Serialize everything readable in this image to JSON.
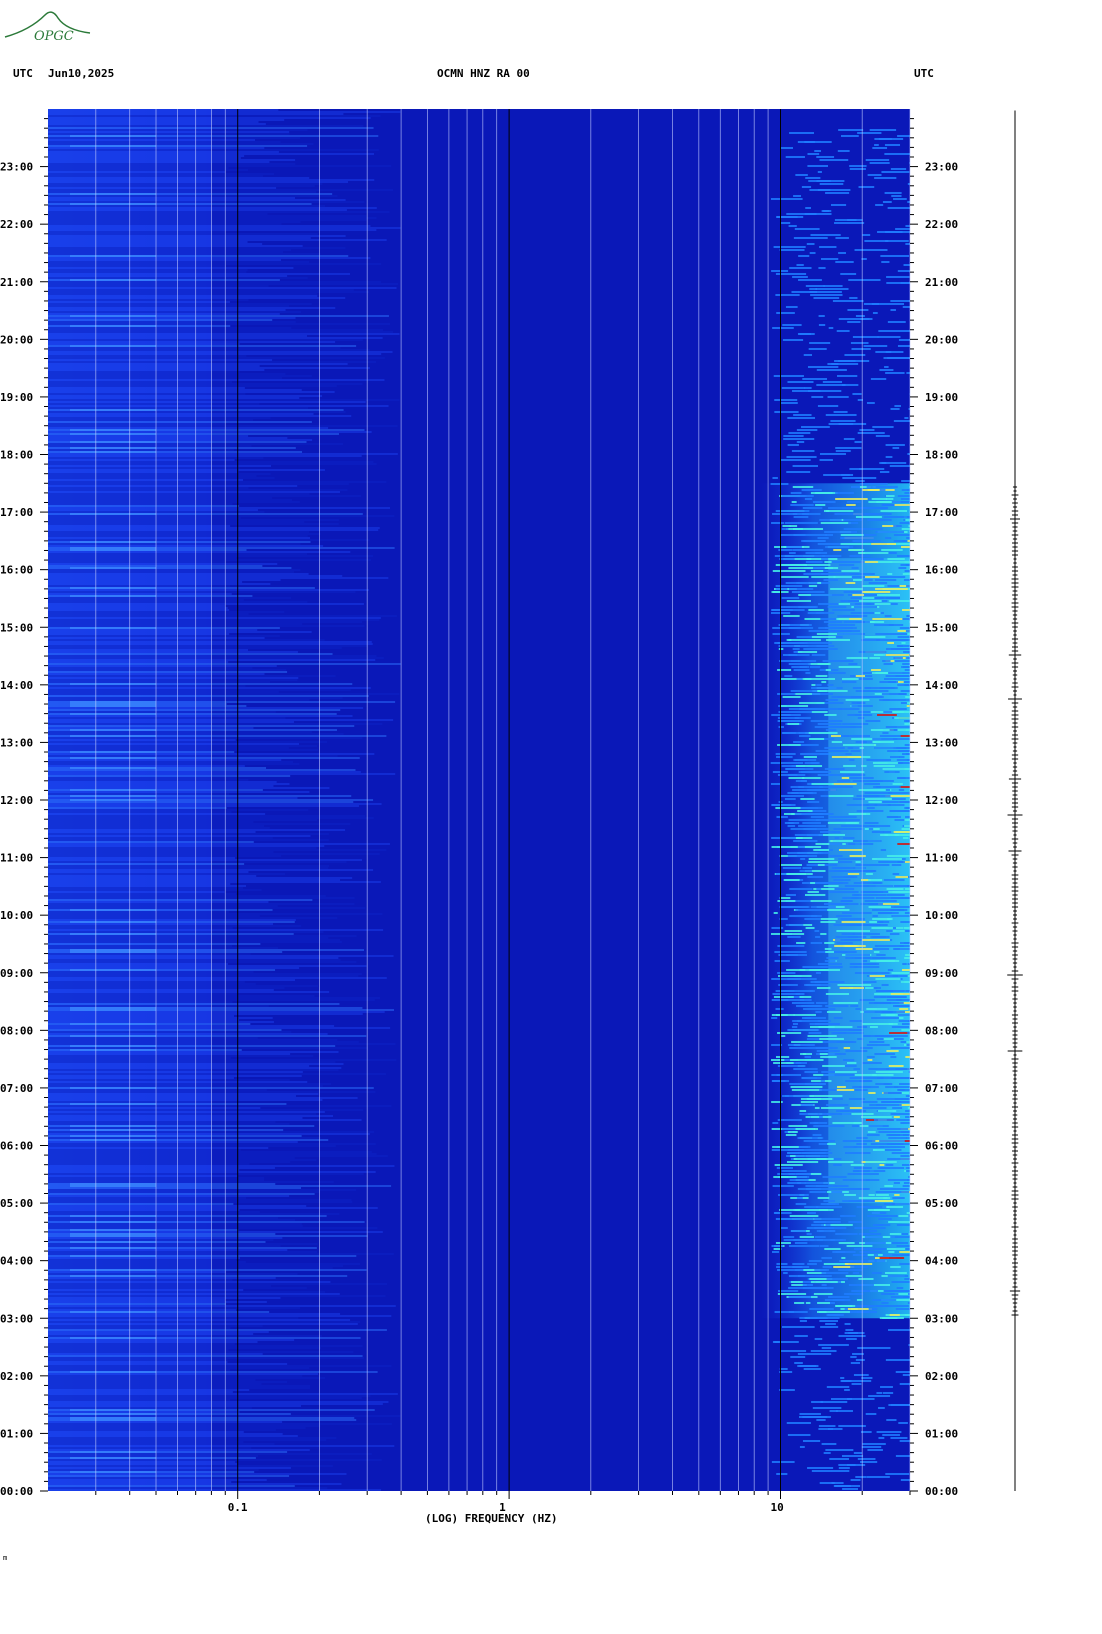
{
  "header": {
    "logo_text": "OPGC",
    "left_label": "UTC",
    "date": "Jun10,2025",
    "station": "OCMN HNZ RA 00",
    "right_label": "UTC"
  },
  "colors": {
    "background": "#0a18b8",
    "low": "#0d1fd0",
    "mid": "#1fb8ff",
    "high": "#f0e040",
    "peak": "#c01010",
    "trace": "#000000"
  },
  "chart_data": {
    "type": "heatmap",
    "title": "OCMN HNZ RA 00",
    "xlabel": "(LOG) FREQUENCY (HZ)",
    "ylabel": "UTC",
    "x_scale": "log",
    "xlim": [
      0.02,
      30
    ],
    "x_ticks": [
      "0.1",
      "1",
      "10"
    ],
    "ylim_hours": [
      0,
      24
    ],
    "y_ticks": [
      "00:00",
      "01:00",
      "02:00",
      "03:00",
      "04:00",
      "05:00",
      "06:00",
      "07:00",
      "08:00",
      "09:00",
      "10:00",
      "11:00",
      "12:00",
      "13:00",
      "14:00",
      "15:00",
      "16:00",
      "17:00",
      "18:00",
      "19:00",
      "20:00",
      "21:00",
      "22:00",
      "23:00"
    ],
    "y_tick_values": [
      0,
      1,
      2,
      3,
      4,
      5,
      6,
      7,
      8,
      9,
      10,
      11,
      12,
      13,
      14,
      15,
      16,
      17,
      18,
      19,
      20,
      21,
      22,
      23
    ],
    "grid_frequencies": [
      0.03,
      0.04,
      0.05,
      0.06,
      0.07,
      0.08,
      0.09,
      0.2,
      0.3,
      0.4,
      0.5,
      0.6,
      0.7,
      0.8,
      0.9,
      2,
      3,
      4,
      5,
      6,
      7,
      8,
      9,
      20,
      30
    ],
    "energy_bands": [
      {
        "hour_start": 3.0,
        "hour_end": 17.5,
        "f_start": 10,
        "f_end": 30,
        "level": "mid"
      },
      {
        "hour_start": 5.0,
        "hour_end": 16.2,
        "f_start": 15,
        "f_end": 30,
        "level": "high"
      }
    ]
  },
  "footer": {
    "mark": "m"
  }
}
